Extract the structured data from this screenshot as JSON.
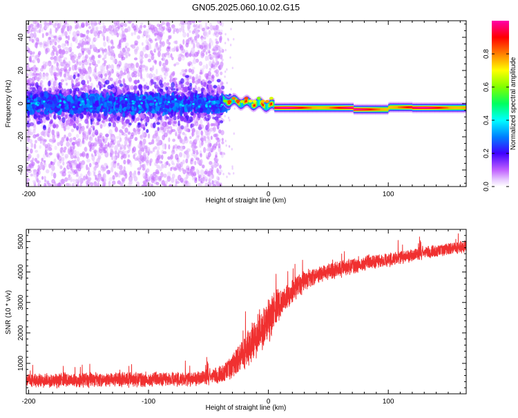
{
  "title": "GN05.2025.060.10.02.G15",
  "colors": {
    "snr_line": "#f03030",
    "frame": "#000000",
    "background": "#ffffff",
    "colorbar": [
      "#ff00ff",
      "#0000ff",
      "#00ffff",
      "#00ff00",
      "#ffff00",
      "#ff0000",
      "#ff00aa"
    ]
  },
  "chart_data": [
    {
      "type": "heatmap",
      "id": "spectrogram",
      "xlabel": "Height of straight line (km)",
      "ylabel": "Frequency (Hz)",
      "xlim": [
        -202,
        165
      ],
      "ylim": [
        -50,
        50
      ],
      "x_ticks": [
        -200,
        -100,
        0,
        100
      ],
      "y_ticks": [
        -40,
        -20,
        0,
        20,
        40
      ],
      "grid": false,
      "colorbar": {
        "label": "Normalized spectral amplitude",
        "range": [
          0,
          1
        ],
        "ticks": [
          0.0,
          0.2,
          0.4,
          0.6,
          0.8
        ],
        "tick_labels": [
          "0.0",
          "0.2",
          "0.4",
          "0.6",
          "0.8"
        ]
      },
      "features": [
        {
          "segment": "diffuse scatter",
          "x_range": [
            -202,
            -38
          ],
          "freq_center_hz": 0,
          "core_halfwidth_hz": 8,
          "scatter_halfwidth_hz": 50,
          "amplitude": [
            0.05,
            0.35
          ]
        },
        {
          "segment": "transition",
          "x_range": [
            -38,
            5
          ],
          "freq_center_hz": 2,
          "halfwidth_hz": 3,
          "amplitude": [
            0.4,
            0.9
          ]
        },
        {
          "segment": "coherent line",
          "x_range": [
            5,
            165
          ],
          "freq_center_hz": -2.5,
          "halfwidth_hz": 2.5,
          "amplitude": [
            0.7,
            1.0
          ]
        }
      ]
    },
    {
      "type": "line",
      "id": "snr",
      "xlabel": "Height of straight line (km)",
      "ylabel": "SNR (10 * v/v)",
      "xlim": [
        -202,
        165
      ],
      "ylim": [
        0,
        5400
      ],
      "x_ticks": [
        -200,
        -100,
        0,
        100
      ],
      "y_ticks": [
        1000,
        2000,
        3000,
        4000,
        5000
      ],
      "grid": false,
      "series": [
        {
          "x": [
            -202,
            -190,
            -180,
            -170,
            -160,
            -150,
            -140,
            -130,
            -120,
            -110,
            -100,
            -90,
            -80,
            -70,
            -60,
            -50,
            -40,
            -30,
            -20,
            -10,
            0,
            10,
            20,
            30,
            40,
            50,
            60,
            70,
            80,
            90,
            100,
            110,
            120,
            130,
            140,
            150,
            165
          ],
          "values": [
            450,
            440,
            440,
            450,
            450,
            460,
            460,
            460,
            470,
            470,
            480,
            480,
            490,
            490,
            510,
            560,
            650,
            900,
            1350,
            1900,
            2450,
            2950,
            3400,
            3700,
            3900,
            4000,
            4100,
            4200,
            4300,
            4350,
            4400,
            4500,
            4550,
            4650,
            4700,
            4750,
            4850
          ],
          "noise_amplitude": [
            350,
            350,
            350,
            360,
            360,
            360,
            360,
            360,
            360,
            360,
            360,
            360,
            360,
            360,
            380,
            400,
            450,
            650,
            900,
            1100,
            1100,
            800,
            600,
            500,
            450,
            420,
            400,
            380,
            380,
            360,
            350,
            340,
            340,
            330,
            320,
            320,
            320
          ]
        }
      ]
    }
  ]
}
